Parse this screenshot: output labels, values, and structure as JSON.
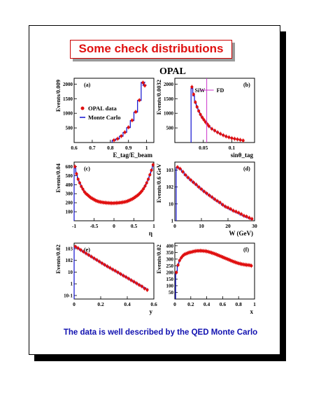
{
  "slide": {
    "title": "Some check distributions",
    "footer": "The data is well described by the QED Monte Carlo"
  },
  "colors": {
    "data": "#e01010",
    "mc": "#1010d0",
    "marker": "#cc33cc",
    "title_border": "#cc0000",
    "footer": "#1010b0"
  },
  "chart_data": [
    {
      "panel": "(a)",
      "type": "histogram",
      "figure_title": "OPAL",
      "xlabel": "E_tag/E_beam",
      "ylabel": "Events/0.009",
      "xlim": [
        0.6,
        1.04
      ],
      "ylim": [
        0,
        2200
      ],
      "xticks": [
        "0.6",
        "0.7",
        "0.8",
        "0.9",
        "1"
      ],
      "yticks": [
        "500",
        "1000",
        "1500",
        "2000"
      ],
      "legend": [
        "OPAL data",
        "Monte Carlo"
      ],
      "x": [
        0.82,
        0.84,
        0.86,
        0.88,
        0.9,
        0.92,
        0.94,
        0.96,
        0.98,
        0.99
      ],
      "data": [
        80,
        130,
        220,
        350,
        520,
        760,
        1050,
        1450,
        2050,
        1950
      ],
      "mc": [
        75,
        125,
        215,
        345,
        510,
        750,
        1040,
        1440,
        2060,
        1960
      ]
    },
    {
      "panel": "(b)",
      "type": "histogram",
      "xlabel": "sinθ_tag",
      "ylabel": "Events/0.0032",
      "xlim": [
        0.0,
        0.14
      ],
      "ylim": [
        0,
        2200
      ],
      "xticks": [
        "0.05",
        "0.1"
      ],
      "yticks": [
        "500",
        "1000",
        "1500",
        "2000"
      ],
      "annotations": [
        "SiW",
        "FD"
      ],
      "x": [
        0.03,
        0.033,
        0.036,
        0.039,
        0.042,
        0.045,
        0.048,
        0.051,
        0.054,
        0.057,
        0.06,
        0.065,
        0.07,
        0.075,
        0.08,
        0.085,
        0.09,
        0.095,
        0.1,
        0.105,
        0.11,
        0.115,
        0.12
      ],
      "data": [
        1900,
        1650,
        1380,
        1220,
        1080,
        960,
        860,
        780,
        700,
        630,
        560,
        470,
        410,
        350,
        300,
        250,
        210,
        180,
        150,
        130,
        110,
        90,
        70
      ],
      "mc": [
        1850,
        1600,
        1350,
        1200,
        1060,
        950,
        850,
        770,
        690,
        620,
        550,
        465,
        405,
        345,
        295,
        245,
        205,
        175,
        148,
        128,
        108,
        88,
        68
      ]
    },
    {
      "panel": "(c)",
      "type": "histogram",
      "xlabel": "η",
      "ylabel": "Events/0.04",
      "xlim": [
        -1,
        1
      ],
      "ylim": [
        0,
        650
      ],
      "xticks": [
        "-1",
        "-0.5",
        "0",
        "0.5",
        "1"
      ],
      "yticks": [
        "100",
        "200",
        "300",
        "400",
        "500",
        "600"
      ],
      "x": [
        -0.98,
        -0.94,
        -0.9,
        -0.86,
        -0.82,
        -0.78,
        -0.74,
        -0.7,
        -0.66,
        -0.62,
        -0.58,
        -0.54,
        -0.5,
        -0.46,
        -0.42,
        -0.38,
        -0.34,
        -0.3,
        -0.26,
        -0.22,
        -0.18,
        -0.14,
        -0.1,
        -0.06,
        -0.02,
        0.02,
        0.06,
        0.1,
        0.14,
        0.18,
        0.22,
        0.26,
        0.3,
        0.34,
        0.38,
        0.42,
        0.46,
        0.5,
        0.54,
        0.58,
        0.62,
        0.66,
        0.7,
        0.74,
        0.78,
        0.82,
        0.86,
        0.9,
        0.94,
        0.98
      ],
      "data": [
        600,
        520,
        460,
        420,
        380,
        350,
        320,
        300,
        285,
        270,
        255,
        245,
        235,
        225,
        218,
        212,
        208,
        205,
        202,
        200,
        198,
        197,
        196,
        195,
        195,
        196,
        197,
        198,
        200,
        202,
        205,
        208,
        212,
        218,
        225,
        233,
        242,
        252,
        265,
        278,
        292,
        310,
        330,
        355,
        385,
        420,
        460,
        510,
        560,
        620
      ],
      "mc": [
        590,
        515,
        455,
        415,
        378,
        348,
        320,
        300,
        283,
        268,
        254,
        243,
        233,
        224,
        217,
        211,
        207,
        204,
        201,
        199,
        197,
        196,
        195,
        195,
        195,
        195,
        196,
        197,
        199,
        201,
        204,
        207,
        211,
        217,
        224,
        232,
        241,
        251,
        263,
        276,
        290,
        308,
        328,
        352,
        382,
        417,
        455,
        505,
        555,
        612
      ]
    },
    {
      "panel": "(d)",
      "type": "histogram",
      "xlabel": "W (GeV)",
      "ylabel": "Events/0.6 GeV",
      "xlim": [
        0,
        30
      ],
      "yscale": "log",
      "ylim": [
        1,
        3000
      ],
      "xticks": [
        "0",
        "10",
        "20",
        "30"
      ],
      "yticks": [
        "1",
        "10",
        "10^2",
        "10^3"
      ],
      "x": [
        1,
        2,
        3,
        4,
        5,
        6,
        7,
        8,
        9,
        10,
        11,
        12,
        13,
        14,
        15,
        16,
        17,
        18,
        19,
        20,
        21,
        22,
        23,
        24,
        25,
        26,
        27,
        28,
        29
      ],
      "data": [
        1500,
        1200,
        800,
        520,
        360,
        260,
        190,
        140,
        100,
        75,
        55,
        42,
        32,
        25,
        19,
        15,
        12,
        9,
        7,
        6,
        5,
        4,
        3.5,
        3,
        2.5,
        2,
        1.8,
        1.5,
        1.3
      ],
      "mc": [
        1450,
        1150,
        780,
        500,
        350,
        250,
        185,
        135,
        98,
        72,
        54,
        41,
        31,
        24,
        18,
        14,
        11,
        8.5,
        6.8,
        5.5,
        4.5,
        3.8,
        3.2,
        2.7,
        2.2,
        1.9,
        1.6,
        1.4,
        1.2
      ]
    },
    {
      "panel": "(e)",
      "type": "histogram",
      "xlabel": "y",
      "ylabel": "Events/0.02",
      "xlim": [
        0,
        0.6
      ],
      "yscale": "log",
      "ylim": [
        0.05,
        3000
      ],
      "xticks": [
        "0",
        "0.2",
        "0.4",
        "0.6"
      ],
      "yticks": [
        "10^-1",
        "1",
        "10",
        "10^2",
        "10^3"
      ],
      "x": [
        0.01,
        0.03,
        0.05,
        0.07,
        0.09,
        0.11,
        0.13,
        0.15,
        0.17,
        0.19,
        0.21,
        0.23,
        0.25,
        0.27,
        0.29,
        0.31,
        0.33,
        0.35,
        0.37,
        0.39,
        0.41,
        0.43,
        0.45,
        0.47,
        0.49,
        0.51,
        0.53,
        0.55
      ],
      "data": [
        1500,
        1100,
        780,
        560,
        400,
        290,
        210,
        150,
        110,
        80,
        58,
        42,
        31,
        23,
        17,
        13,
        9.5,
        7,
        5,
        3.8,
        2.8,
        2,
        1.5,
        1.1,
        0.8,
        0.6,
        0.4,
        0.3
      ],
      "mc": [
        1450,
        1060,
        760,
        545,
        390,
        282,
        205,
        147,
        107,
        78,
        56,
        41,
        30,
        22,
        16.5,
        12.5,
        9,
        6.8,
        5,
        3.7,
        2.7,
        2,
        1.5,
        1.1,
        0.8,
        0.6,
        0.45,
        0.35
      ]
    },
    {
      "panel": "(f)",
      "type": "histogram",
      "xlabel": "x",
      "ylabel": "Events/0.02",
      "xlim": [
        0,
        1
      ],
      "ylim": [
        0,
        420
      ],
      "xticks": [
        "0",
        "0.2",
        "0.4",
        "0.6",
        "0.8",
        "1"
      ],
      "yticks": [
        "50",
        "100",
        "150",
        "200",
        "250",
        "300",
        "350",
        "400"
      ],
      "x": [
        0.02,
        0.04,
        0.06,
        0.08,
        0.1,
        0.12,
        0.14,
        0.16,
        0.18,
        0.2,
        0.22,
        0.24,
        0.26,
        0.28,
        0.3,
        0.32,
        0.34,
        0.36,
        0.38,
        0.4,
        0.42,
        0.44,
        0.46,
        0.48,
        0.5,
        0.52,
        0.54,
        0.56,
        0.58,
        0.6,
        0.62,
        0.64,
        0.66,
        0.68,
        0.7,
        0.72,
        0.74,
        0.76,
        0.78,
        0.8,
        0.82,
        0.84,
        0.86,
        0.88,
        0.9,
        0.92,
        0.94,
        0.96
      ],
      "data": [
        200,
        255,
        290,
        310,
        325,
        335,
        340,
        345,
        350,
        352,
        355,
        358,
        360,
        362,
        362,
        363,
        362,
        361,
        360,
        358,
        355,
        352,
        348,
        344,
        340,
        335,
        330,
        325,
        320,
        315,
        310,
        305,
        300,
        295,
        290,
        285,
        280,
        276,
        272,
        268,
        265,
        262,
        260,
        258,
        256,
        255,
        254,
        250
      ],
      "mc": [
        195,
        250,
        287,
        308,
        322,
        332,
        338,
        343,
        348,
        350,
        353,
        356,
        358,
        360,
        360,
        361,
        360,
        359,
        358,
        356,
        353,
        350,
        346,
        342,
        338,
        333,
        328,
        323,
        318,
        313,
        308,
        303,
        298,
        293,
        288,
        283,
        279,
        275,
        271,
        267,
        264,
        261,
        259,
        257,
        255,
        254,
        253,
        249
      ]
    }
  ]
}
